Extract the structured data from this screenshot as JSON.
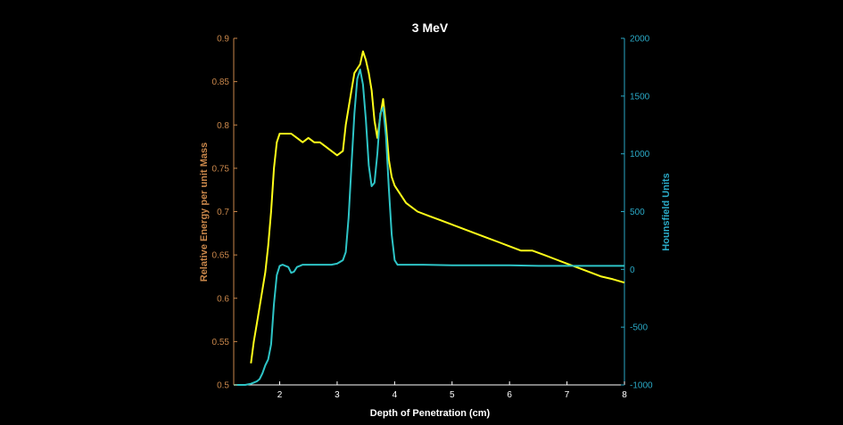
{
  "chart_data": {
    "type": "line",
    "title": "3 MeV",
    "xlabel": "Depth of Penetration (cm)",
    "ylabel_left": "Relative Energy per unit Mass",
    "ylabel_right": "Hounsfield Units",
    "xlim": [
      1.2,
      8
    ],
    "ylim_left": [
      0.5,
      0.9
    ],
    "ylim_right": [
      -1000,
      2000
    ],
    "x_ticks": [
      2,
      3,
      4,
      5,
      6,
      7,
      8
    ],
    "y_left_ticks": [
      0.5,
      0.55,
      0.6,
      0.65,
      0.7,
      0.75,
      0.8,
      0.85,
      0.9
    ],
    "y_right_ticks": [
      -1000,
      -500,
      0,
      500,
      1000,
      1500,
      2000
    ],
    "grid": false,
    "colors": {
      "background": "#000000",
      "left_axis": "#c8864a",
      "right_axis": "#2aa9c6",
      "frame": "#ffffff"
    },
    "series": [
      {
        "axis": "left",
        "color": "#ffff1a",
        "x": [
          1.5,
          1.55,
          1.6,
          1.65,
          1.7,
          1.75,
          1.8,
          1.85,
          1.9,
          1.95,
          2.0,
          2.1,
          2.2,
          2.3,
          2.4,
          2.5,
          2.6,
          2.7,
          2.8,
          2.9,
          3.0,
          3.1,
          3.15,
          3.2,
          3.25,
          3.3,
          3.35,
          3.4,
          3.45,
          3.5,
          3.55,
          3.6,
          3.65,
          3.7,
          3.75,
          3.8,
          3.85,
          3.9,
          3.95,
          4.0,
          4.1,
          4.2,
          4.4,
          4.6,
          4.8,
          5.0,
          5.2,
          5.4,
          5.6,
          5.8,
          6.0,
          6.2,
          6.4,
          6.6,
          6.8,
          7.0,
          7.2,
          7.4,
          7.6,
          7.8,
          8.0
        ],
        "y": [
          0.525,
          0.55,
          0.57,
          0.59,
          0.61,
          0.63,
          0.66,
          0.7,
          0.75,
          0.78,
          0.79,
          0.79,
          0.79,
          0.785,
          0.78,
          0.785,
          0.78,
          0.78,
          0.775,
          0.77,
          0.765,
          0.77,
          0.8,
          0.82,
          0.84,
          0.86,
          0.865,
          0.87,
          0.885,
          0.875,
          0.86,
          0.84,
          0.805,
          0.785,
          0.81,
          0.83,
          0.8,
          0.76,
          0.74,
          0.73,
          0.72,
          0.71,
          0.7,
          0.695,
          0.69,
          0.685,
          0.68,
          0.675,
          0.67,
          0.665,
          0.66,
          0.655,
          0.655,
          0.65,
          0.645,
          0.64,
          0.635,
          0.63,
          0.625,
          0.622,
          0.618
        ]
      },
      {
        "axis": "right",
        "color": "#2ec4c6",
        "x": [
          1.2,
          1.4,
          1.5,
          1.6,
          1.65,
          1.7,
          1.75,
          1.8,
          1.85,
          1.9,
          1.95,
          2.0,
          2.05,
          2.1,
          2.15,
          2.2,
          2.25,
          2.3,
          2.35,
          2.4,
          2.5,
          2.6,
          2.7,
          2.8,
          2.9,
          3.0,
          3.1,
          3.15,
          3.2,
          3.25,
          3.3,
          3.35,
          3.4,
          3.45,
          3.5,
          3.55,
          3.6,
          3.65,
          3.7,
          3.75,
          3.8,
          3.85,
          3.9,
          3.95,
          4.0,
          4.05,
          4.1,
          4.5,
          5.0,
          5.5,
          6.0,
          6.5,
          7.0,
          7.5,
          8.0
        ],
        "y": [
          -1000,
          -1000,
          -990,
          -970,
          -950,
          -900,
          -830,
          -780,
          -650,
          -300,
          -50,
          30,
          40,
          30,
          20,
          -30,
          -20,
          20,
          30,
          40,
          40,
          40,
          40,
          40,
          40,
          50,
          80,
          150,
          450,
          900,
          1350,
          1650,
          1730,
          1600,
          1300,
          900,
          720,
          750,
          1000,
          1350,
          1400,
          1150,
          700,
          300,
          80,
          40,
          40,
          40,
          35,
          35,
          35,
          30,
          30,
          30,
          30
        ]
      }
    ]
  }
}
